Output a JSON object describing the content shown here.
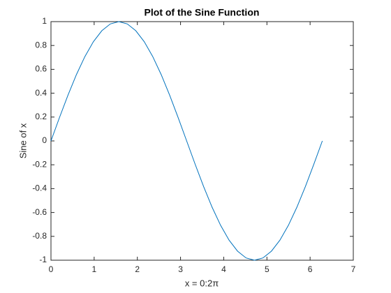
{
  "chart_data": {
    "type": "line",
    "title": "Plot of the Sine Function",
    "x_label": "x = 0:2π",
    "y_label": "Sine of x",
    "x": [
      0,
      0.1963,
      0.3927,
      0.589,
      0.7854,
      0.9817,
      1.1781,
      1.3744,
      1.5708,
      1.7671,
      1.9635,
      2.1598,
      2.3562,
      2.5525,
      2.7489,
      2.9452,
      3.1416,
      3.3379,
      3.5343,
      3.7306,
      3.927,
      4.1233,
      4.3197,
      4.516,
      4.7124,
      4.9087,
      5.1051,
      5.3014,
      5.4978,
      5.6941,
      5.8905,
      6.0868,
      6.2832
    ],
    "values": [
      0,
      0.1951,
      0.3827,
      0.5556,
      0.7071,
      0.8315,
      0.9239,
      0.9808,
      1,
      0.9808,
      0.9239,
      0.8315,
      0.7071,
      0.5556,
      0.3827,
      0.1951,
      0,
      -0.1951,
      -0.3827,
      -0.5556,
      -0.7071,
      -0.8315,
      -0.9239,
      -0.9808,
      -1,
      -0.9808,
      -0.9239,
      -0.8315,
      -0.7071,
      -0.5556,
      -0.3827,
      -0.1951,
      0
    ],
    "color": "#0072bd",
    "xlim": [
      0,
      7
    ],
    "xticks": [
      0,
      1,
      2,
      3,
      4,
      5,
      6,
      7
    ],
    "ylim": [
      -1,
      1
    ],
    "yticks": [
      -1,
      -0.8,
      -0.6,
      -0.4,
      -0.2,
      0,
      0.2,
      0.4,
      0.6,
      0.8,
      1
    ]
  }
}
